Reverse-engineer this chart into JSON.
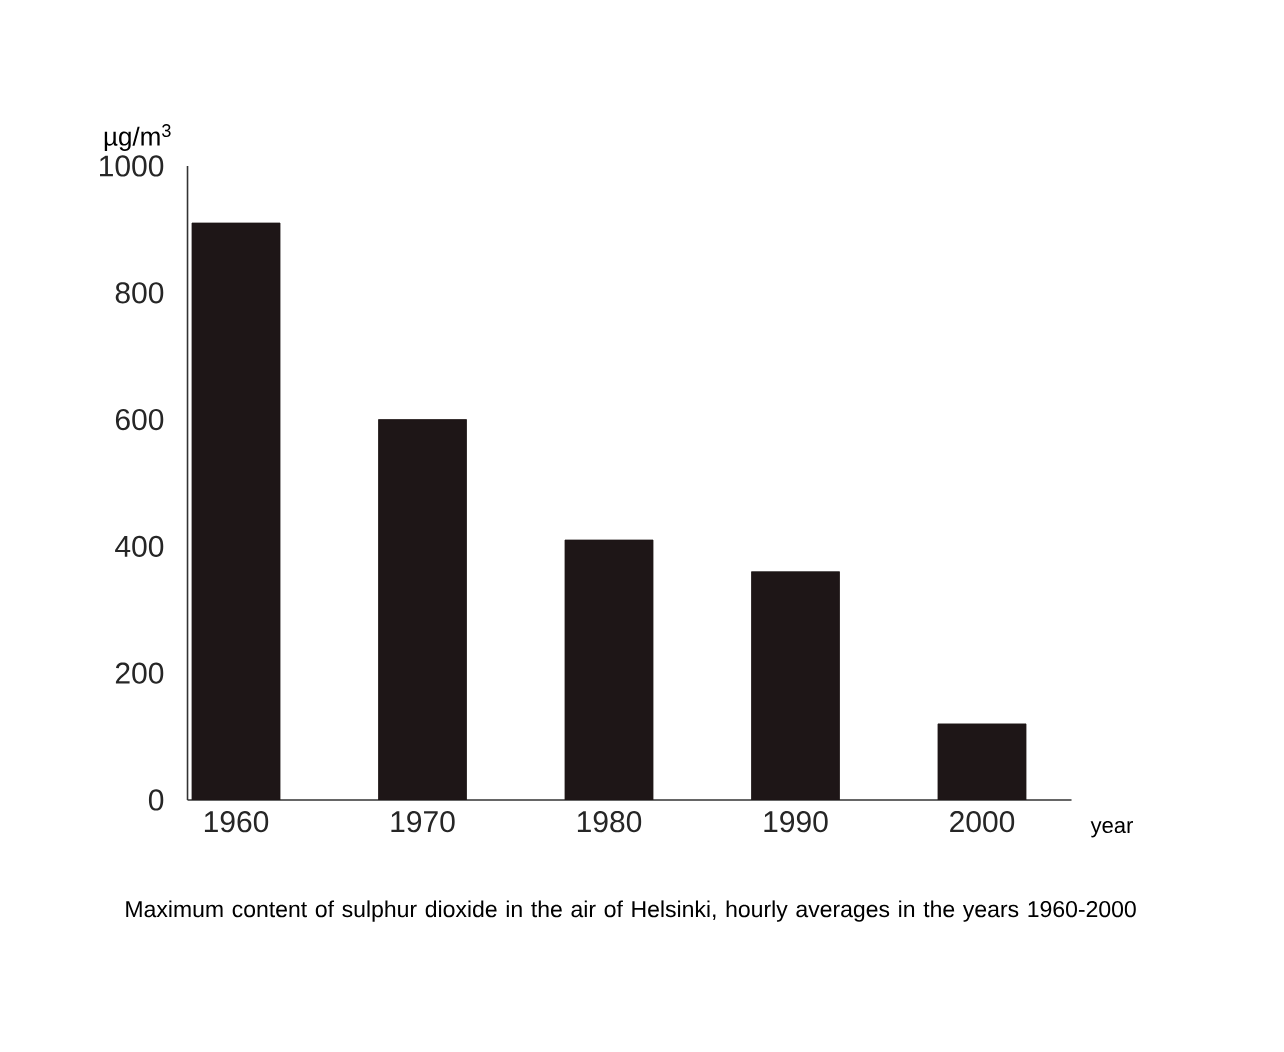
{
  "chart_data": {
    "type": "bar",
    "categories": [
      "1960",
      "1970",
      "1980",
      "1990",
      "2000"
    ],
    "values": [
      910,
      600,
      410,
      360,
      120
    ],
    "color": "#1e1617",
    "ylabel": "µg/m$^{3}$",
    "xlabel": "year",
    "ylim": [
      0,
      1000
    ],
    "yticks": [
      0,
      200,
      400,
      600,
      800,
      1000
    ],
    "annotations": [
      "Maximum content of sulphur dioxide in the air of Helsinki, hourly averages in the years 1960-2000"
    ]
  }
}
